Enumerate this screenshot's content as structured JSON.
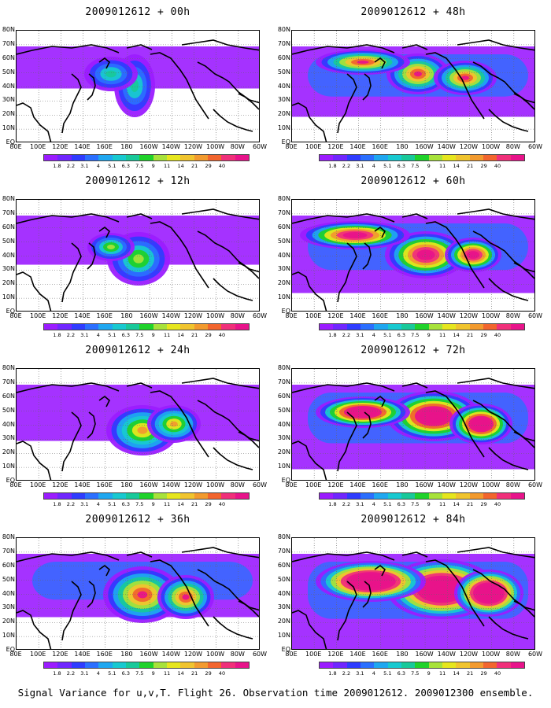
{
  "caption": "Signal Variance for u,v,T. Flight 26. Observation time 2009012612. 2009012300 ensemble.",
  "panels": [
    {
      "title": "2009012612 + 00h",
      "intensity": 0.15
    },
    {
      "title": "2009012612 + 48h",
      "intensity": 0.55
    },
    {
      "title": "2009012612 + 12h",
      "intensity": 0.25
    },
    {
      "title": "2009012612 + 60h",
      "intensity": 0.65
    },
    {
      "title": "2009012612 + 24h",
      "intensity": 0.35
    },
    {
      "title": "2009012612 + 72h",
      "intensity": 0.75
    },
    {
      "title": "2009012612 + 36h",
      "intensity": 0.45
    },
    {
      "title": "2009012612 + 84h",
      "intensity": 0.9
    }
  ],
  "lat_labels": [
    "80N",
    "70N",
    "60N",
    "50N",
    "40N",
    "30N",
    "20N",
    "10N",
    "EQ"
  ],
  "lon_labels": [
    "80E",
    "100E",
    "120E",
    "140E",
    "160E",
    "180",
    "160W",
    "140W",
    "120W",
    "100W",
    "80W",
    "60W"
  ],
  "colorbar": {
    "colors": [
      "#9b1cff",
      "#7026ff",
      "#2f3cff",
      "#2b6fff",
      "#1fa7f0",
      "#18c9d0",
      "#18c99a",
      "#1fd22a",
      "#a7e23a",
      "#e6e61e",
      "#f0c42e",
      "#f29a2e",
      "#f2652e",
      "#f0307a",
      "#e8138a"
    ],
    "labels": [
      "1.8",
      "2.2",
      "3.1",
      "4",
      "5.1",
      "6.3",
      "7.5",
      "9",
      "11",
      "14",
      "21",
      "29",
      "40"
    ]
  }
}
